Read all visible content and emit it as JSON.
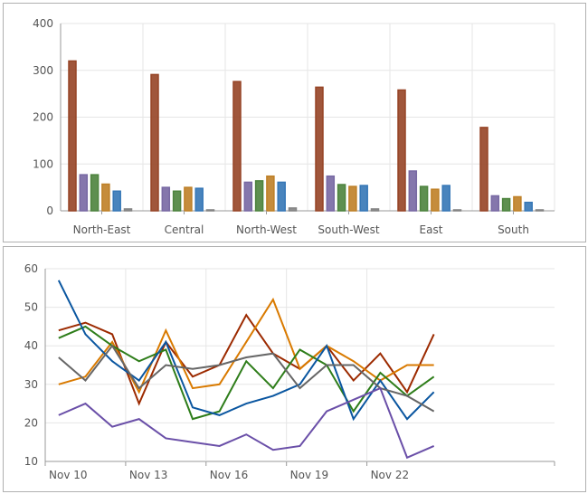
{
  "chart_data": [
    {
      "type": "bar",
      "categories": [
        "North-East",
        "Central",
        "North-West",
        "South-West",
        "East",
        "South"
      ],
      "ylim": [
        0,
        400
      ],
      "yticks": [
        0,
        100,
        200,
        300,
        400
      ],
      "grid": true,
      "colors": [
        "#b0502c",
        "#8d7bc0",
        "#5a9a48",
        "#e0962e",
        "#3f8cd6",
        "#9a9a9a"
      ],
      "series": [
        {
          "values": [
            320,
            291,
            276,
            264,
            258,
            178
          ]
        },
        {
          "values": [
            77,
            50,
            61,
            74,
            85,
            32
          ]
        },
        {
          "values": [
            77,
            42,
            64,
            56,
            52,
            26
          ]
        },
        {
          "values": [
            57,
            50,
            74,
            52,
            46,
            30
          ]
        },
        {
          "values": [
            42,
            48,
            61,
            54,
            54,
            18
          ]
        },
        {
          "values": [
            4,
            2,
            6,
            4,
            2,
            2
          ]
        }
      ]
    },
    {
      "type": "line",
      "x": [
        "Nov 10",
        "Nov 11",
        "Nov 12",
        "Nov 13",
        "Nov 14",
        "Nov 15",
        "Nov 16",
        "Nov 17",
        "Nov 18",
        "Nov 19",
        "Nov 20",
        "Nov 21",
        "Nov 22",
        "Nov 23",
        "Nov 24"
      ],
      "xtick_labels": [
        "Nov 10",
        "Nov 13",
        "Nov 16",
        "Nov 19",
        "Nov 22"
      ],
      "ylim": [
        10,
        60
      ],
      "yticks": [
        10,
        20,
        30,
        40,
        50,
        60
      ],
      "grid": true,
      "series": [
        {
          "color": "#9c2a00",
          "values": [
            44,
            46,
            43,
            25,
            41,
            32,
            35,
            48,
            38,
            34,
            40,
            31,
            38,
            28,
            43
          ]
        },
        {
          "color": "#d97a00",
          "values": [
            30,
            32,
            41,
            28,
            44,
            29,
            30,
            41,
            52,
            34,
            40,
            36,
            31,
            35,
            35
          ]
        },
        {
          "color": "#2e7d1a",
          "values": [
            42,
            45,
            40,
            36,
            39,
            21,
            23,
            36,
            29,
            39,
            35,
            23,
            33,
            27,
            32
          ]
        },
        {
          "color": "#0a56a0",
          "values": [
            57,
            43,
            36,
            31,
            41,
            24,
            22,
            25,
            27,
            30,
            40,
            21,
            31,
            21,
            28
          ]
        },
        {
          "color": "#666666",
          "values": [
            37,
            31,
            40,
            29,
            35,
            34,
            35,
            37,
            38,
            29,
            35,
            35,
            29,
            27,
            23
          ]
        },
        {
          "color": "#6a4fa8",
          "values": [
            22,
            25,
            19,
            21,
            16,
            15,
            14,
            17,
            13,
            14,
            23,
            26,
            29,
            11,
            14
          ]
        }
      ]
    }
  ]
}
